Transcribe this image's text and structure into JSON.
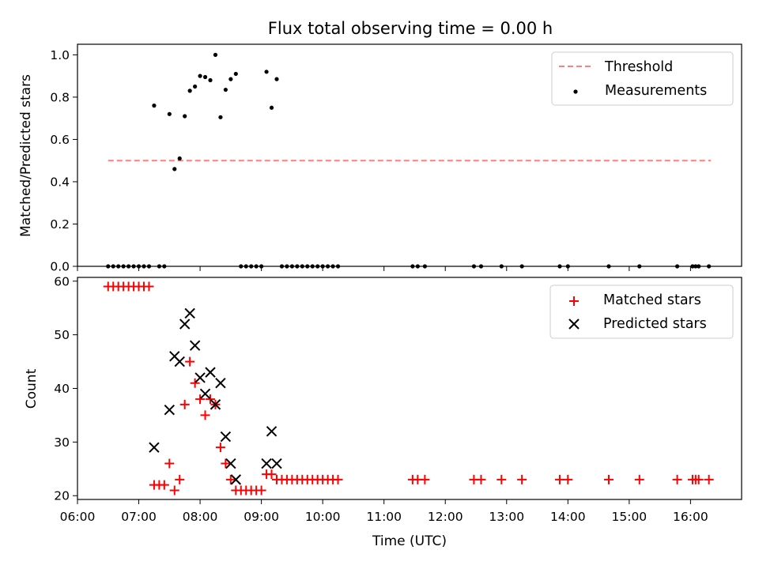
{
  "chart_data": [
    {
      "type": "scatter",
      "title": "Flux total observing time = 0.00 h",
      "xlabel": "",
      "ylabel": "Matched/Predicted stars",
      "xlim": [
        "06:00",
        "16:50"
      ],
      "ylim": [
        0.0,
        1.05
      ],
      "yticks": [
        "0.0",
        "0.2",
        "0.4",
        "0.6",
        "0.8",
        "1.0"
      ],
      "legend_position": "upper right",
      "threshold": {
        "name": "Threshold",
        "value": 0.5,
        "x_range": [
          "06:30",
          "16:20"
        ],
        "color": "#ff7f7f",
        "style": "dashed"
      },
      "series": [
        {
          "name": "Measurements",
          "color": "#000000",
          "marker": "dot",
          "points": [
            [
              "06:30",
              0
            ],
            [
              "06:35",
              0
            ],
            [
              "06:40",
              0
            ],
            [
              "06:45",
              0
            ],
            [
              "06:50",
              0
            ],
            [
              "06:55",
              0
            ],
            [
              "07:00",
              0
            ],
            [
              "07:05",
              0
            ],
            [
              "07:10",
              0
            ],
            [
              "07:15",
              0.76
            ],
            [
              "07:20",
              0
            ],
            [
              "07:25",
              0
            ],
            [
              "07:30",
              0.72
            ],
            [
              "07:35",
              0.46
            ],
            [
              "07:40",
              0.51
            ],
            [
              "07:45",
              0.71
            ],
            [
              "07:50",
              0.83
            ],
            [
              "07:55",
              0.85
            ],
            [
              "08:00",
              0.9
            ],
            [
              "08:05",
              0.895
            ],
            [
              "08:10",
              0.88
            ],
            [
              "08:15",
              1.0
            ],
            [
              "08:20",
              0.705
            ],
            [
              "08:25",
              0.835
            ],
            [
              "08:30",
              0.885
            ],
            [
              "08:35",
              0.91
            ],
            [
              "08:40",
              0
            ],
            [
              "08:45",
              0
            ],
            [
              "08:50",
              0
            ],
            [
              "08:55",
              0
            ],
            [
              "09:00",
              0
            ],
            [
              "09:05",
              0.92
            ],
            [
              "09:10",
              0.75
            ],
            [
              "09:15",
              0.885
            ],
            [
              "09:20",
              0
            ],
            [
              "09:25",
              0
            ],
            [
              "09:30",
              0
            ],
            [
              "09:35",
              0
            ],
            [
              "09:40",
              0
            ],
            [
              "09:45",
              0
            ],
            [
              "09:50",
              0
            ],
            [
              "09:55",
              0
            ],
            [
              "10:00",
              0
            ],
            [
              "10:05",
              0
            ],
            [
              "10:10",
              0
            ],
            [
              "10:15",
              0
            ],
            [
              "11:28",
              0
            ],
            [
              "11:33",
              0
            ],
            [
              "11:40",
              0
            ],
            [
              "12:28",
              0
            ],
            [
              "12:35",
              0
            ],
            [
              "12:55",
              0
            ],
            [
              "13:15",
              0
            ],
            [
              "13:52",
              0
            ],
            [
              "14:00",
              0
            ],
            [
              "14:40",
              0
            ],
            [
              "15:10",
              0
            ],
            [
              "15:47",
              0
            ],
            [
              "16:02",
              0
            ],
            [
              "16:05",
              0
            ],
            [
              "16:08",
              0
            ],
            [
              "16:18",
              0
            ]
          ]
        }
      ]
    },
    {
      "type": "scatter",
      "title": "",
      "xlabel": "Time (UTC)",
      "ylabel": "Count",
      "xlim": [
        "06:00",
        "16:50"
      ],
      "ylim": [
        19.3,
        60.7
      ],
      "xticks": [
        "06:00",
        "07:00",
        "08:00",
        "09:00",
        "10:00",
        "11:00",
        "12:00",
        "13:00",
        "14:00",
        "15:00",
        "16:00"
      ],
      "yticks": [
        "20",
        "30",
        "40",
        "50",
        "60"
      ],
      "legend_position": "upper right",
      "series": [
        {
          "name": "Matched stars",
          "color": "#ff0000",
          "marker": "plus",
          "points": [
            [
              "06:30",
              59
            ],
            [
              "06:35",
              59
            ],
            [
              "06:40",
              59
            ],
            [
              "06:45",
              59
            ],
            [
              "06:50",
              59
            ],
            [
              "06:55",
              59
            ],
            [
              "07:00",
              59
            ],
            [
              "07:05",
              59
            ],
            [
              "07:10",
              59
            ],
            [
              "07:15",
              22
            ],
            [
              "07:20",
              22
            ],
            [
              "07:25",
              22
            ],
            [
              "07:30",
              26
            ],
            [
              "07:35",
              21
            ],
            [
              "07:40",
              23
            ],
            [
              "07:45",
              37
            ],
            [
              "07:50",
              45
            ],
            [
              "07:55",
              41
            ],
            [
              "08:00",
              38
            ],
            [
              "08:05",
              35
            ],
            [
              "08:10",
              38
            ],
            [
              "08:15",
              37
            ],
            [
              "08:20",
              29
            ],
            [
              "08:25",
              26
            ],
            [
              "08:30",
              23
            ],
            [
              "08:35",
              21
            ],
            [
              "08:40",
              21
            ],
            [
              "08:45",
              21
            ],
            [
              "08:50",
              21
            ],
            [
              "08:55",
              21
            ],
            [
              "09:00",
              21
            ],
            [
              "09:05",
              24
            ],
            [
              "09:10",
              24
            ],
            [
              "09:15",
              23
            ],
            [
              "09:20",
              23
            ],
            [
              "09:25",
              23
            ],
            [
              "09:30",
              23
            ],
            [
              "09:35",
              23
            ],
            [
              "09:40",
              23
            ],
            [
              "09:45",
              23
            ],
            [
              "09:50",
              23
            ],
            [
              "09:55",
              23
            ],
            [
              "10:00",
              23
            ],
            [
              "10:05",
              23
            ],
            [
              "10:10",
              23
            ],
            [
              "10:15",
              23
            ],
            [
              "11:28",
              23
            ],
            [
              "11:33",
              23
            ],
            [
              "11:40",
              23
            ],
            [
              "12:28",
              23
            ],
            [
              "12:35",
              23
            ],
            [
              "12:55",
              23
            ],
            [
              "13:15",
              23
            ],
            [
              "13:52",
              23
            ],
            [
              "14:00",
              23
            ],
            [
              "14:40",
              23
            ],
            [
              "15:10",
              23
            ],
            [
              "15:47",
              23
            ],
            [
              "16:02",
              23
            ],
            [
              "16:05",
              23
            ],
            [
              "16:08",
              23
            ],
            [
              "16:18",
              23
            ]
          ]
        },
        {
          "name": "Predicted stars",
          "color": "#000000",
          "marker": "x",
          "points": [
            [
              "07:15",
              29
            ],
            [
              "07:30",
              36
            ],
            [
              "07:35",
              46
            ],
            [
              "07:40",
              45
            ],
            [
              "07:45",
              52
            ],
            [
              "07:50",
              54
            ],
            [
              "07:55",
              48
            ],
            [
              "08:00",
              42
            ],
            [
              "08:05",
              39
            ],
            [
              "08:10",
              43
            ],
            [
              "08:15",
              37
            ],
            [
              "08:20",
              41
            ],
            [
              "08:25",
              31
            ],
            [
              "08:30",
              26
            ],
            [
              "08:35",
              23
            ],
            [
              "09:05",
              26
            ],
            [
              "09:10",
              32
            ],
            [
              "09:15",
              26
            ]
          ]
        }
      ]
    }
  ]
}
